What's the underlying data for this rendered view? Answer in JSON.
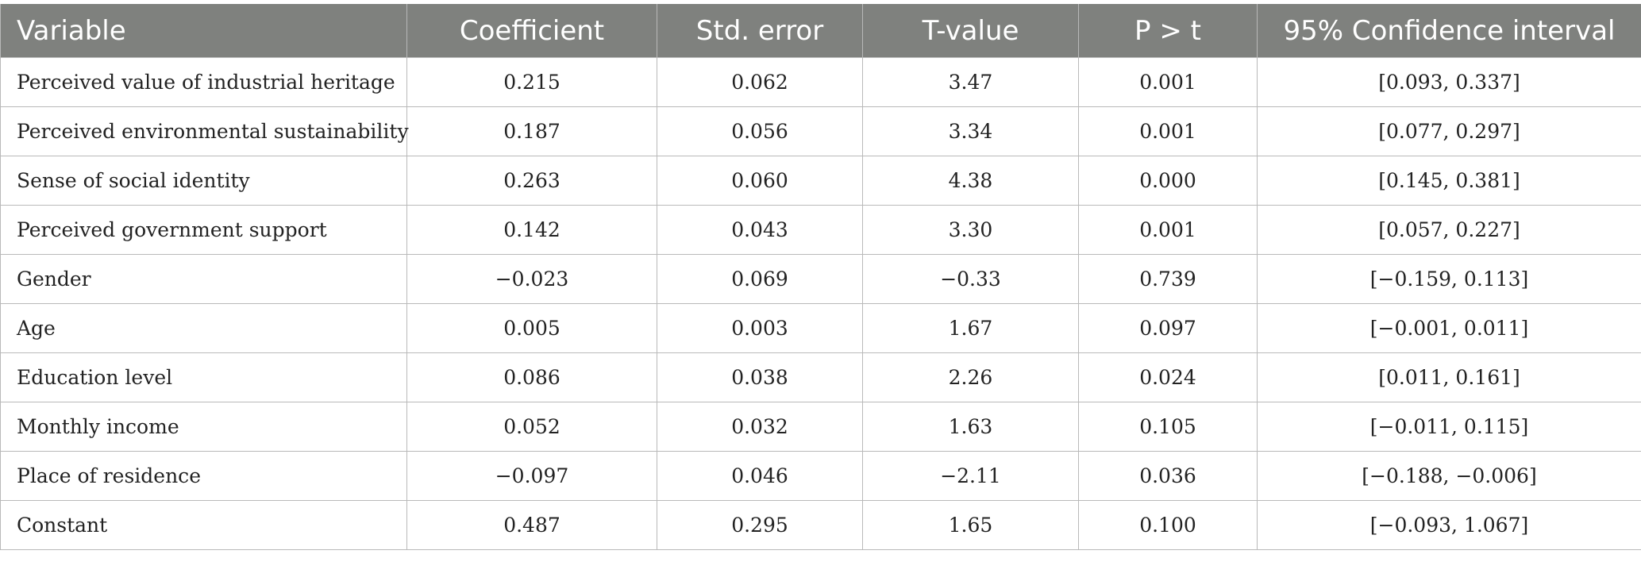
{
  "table": {
    "headers": [
      "Variable",
      "Coefficient",
      "Std. error",
      "T-value",
      "P > t",
      "95% Confidence interval"
    ],
    "rows": [
      [
        "Perceived value of industrial heritage",
        "0.215",
        "0.062",
        "3.47",
        "0.001",
        "[0.093, 0.337]"
      ],
      [
        "Perceived environmental sustainability",
        "0.187",
        "0.056",
        "3.34",
        "0.001",
        "[0.077, 0.297]"
      ],
      [
        "Sense of social identity",
        "0.263",
        "0.060",
        "4.38",
        "0.000",
        "[0.145, 0.381]"
      ],
      [
        "Perceived government support",
        "0.142",
        "0.043",
        "3.30",
        "0.001",
        "[0.057, 0.227]"
      ],
      [
        "Gender",
        "−0.023",
        "0.069",
        "−0.33",
        "0.739",
        "[−0.159, 0.113]"
      ],
      [
        "Age",
        "0.005",
        "0.003",
        "1.67",
        "0.097",
        "[−0.001, 0.011]"
      ],
      [
        "Education level",
        "0.086",
        "0.038",
        "2.26",
        "0.024",
        "[0.011, 0.161]"
      ],
      [
        "Monthly income",
        "0.052",
        "0.032",
        "1.63",
        "0.105",
        "[−0.011, 0.115]"
      ],
      [
        "Place of residence",
        "−0.097",
        "0.046",
        "−2.11",
        "0.036",
        "[−0.188, −0.006]"
      ],
      [
        "Constant",
        "0.487",
        "0.295",
        "1.65",
        "0.100",
        "[−0.093, 1.067]"
      ]
    ]
  },
  "colors": {
    "header_background": "#7f817e",
    "header_text": "#ffffff",
    "grid_lines": "#b9b9b9"
  }
}
